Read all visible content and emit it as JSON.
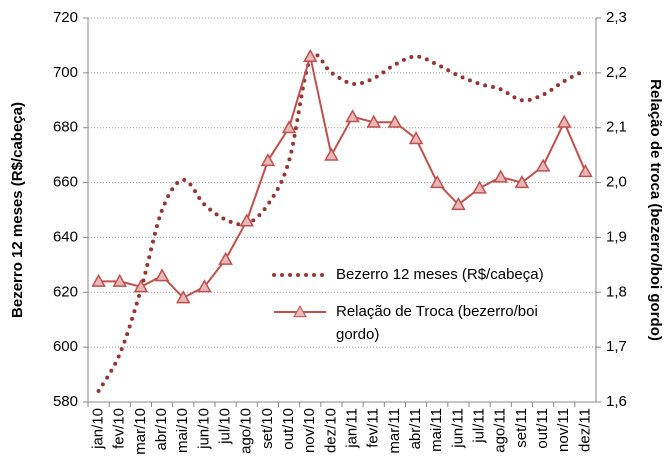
{
  "chart_data": {
    "type": "line",
    "categories": [
      "jan/10",
      "fev/10",
      "mar/10",
      "abr/10",
      "mai/10",
      "jun/10",
      "jul/10",
      "ago/10",
      "set/10",
      "out/10",
      "nov/10",
      "dez/10",
      "jan/11",
      "fev/11",
      "mar/11",
      "abr/11",
      "mai/11",
      "jun/11",
      "jul/11",
      "ago/11",
      "set/11",
      "out/11",
      "nov/11",
      "dez/11"
    ],
    "y_label": "Bezerro 12 meses (R$/cabeça)",
    "y2_label": "Relação de troca (bezerro/boi gordo)",
    "ylim": [
      580,
      720
    ],
    "yticks": [
      580,
      600,
      620,
      640,
      660,
      680,
      700,
      720
    ],
    "y2lim": [
      1.6,
      2.3
    ],
    "y2ticks": [
      {
        "value": 1.6,
        "label": "1,6"
      },
      {
        "value": 1.7,
        "label": "1,7"
      },
      {
        "value": 1.8,
        "label": "1,8"
      },
      {
        "value": 1.9,
        "label": "1,9"
      },
      {
        "value": 2.0,
        "label": "2,0"
      },
      {
        "value": 2.1,
        "label": "2,1"
      },
      {
        "value": 2.2,
        "label": "2,2"
      },
      {
        "value": 2.3,
        "label": "2,3"
      }
    ],
    "grid": true,
    "series": [
      {
        "name": "Bezerro 12 meses (R$/cabeça)",
        "color": "#943634",
        "line_style": "dotted",
        "smooth": true,
        "values": [
          584,
          597.5,
          621,
          650,
          661,
          652,
          646.5,
          645,
          652,
          668,
          705,
          700,
          696,
          698,
          703,
          706,
          703,
          699,
          696,
          694,
          690,
          692,
          697,
          701
        ]
      },
      {
        "name": "Relação de Troca (bezerro/boi gordo)",
        "color": "#c0504d",
        "marker": "triangle",
        "marker_fill": "#e6b9b8",
        "axis": "y2",
        "values": [
          1.82,
          1.82,
          1.81,
          1.83,
          1.79,
          1.81,
          1.86,
          1.93,
          2.04,
          2.1,
          2.23,
          2.05,
          2.12,
          2.11,
          2.11,
          2.08,
          2.0,
          1.96,
          1.99,
          2.01,
          2.0,
          2.03,
          2.11,
          2.02
        ]
      }
    ]
  }
}
